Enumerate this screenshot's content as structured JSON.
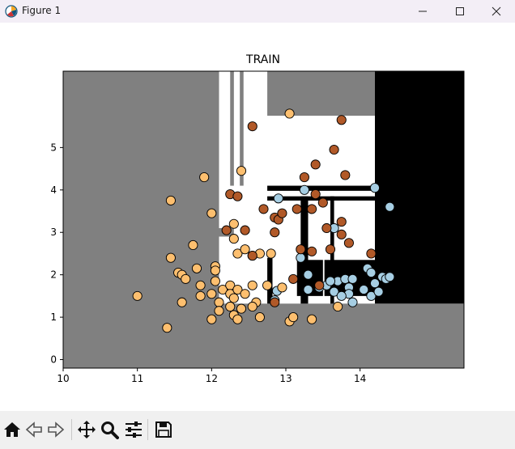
{
  "window": {
    "title": "Figure 1",
    "icons": [
      "app-icon",
      "minimize-icon",
      "maximize-icon",
      "close-icon"
    ]
  },
  "toolbar": {
    "buttons": [
      "home-icon",
      "back-icon",
      "forward-icon",
      "pan-icon",
      "zoom-icon",
      "configure-subplots-icon",
      "save-icon"
    ]
  },
  "chart_data": {
    "type": "scatter",
    "title": "TRAIN",
    "xlabel": "",
    "ylabel": "",
    "xlim": [
      10,
      15.4
    ],
    "ylim": [
      -0.2,
      6.8
    ],
    "xticks": [
      "10",
      "11",
      "12",
      "13",
      "14"
    ],
    "yticks": [
      "0",
      "1",
      "2",
      "3",
      "4",
      "5"
    ],
    "grid": false,
    "colors": {
      "light_blue": "#a6cee3",
      "orange": "#fdbf6f",
      "brown": "#b15928",
      "region_grey": "#808080",
      "region_black": "#000000",
      "region_white": "#ffffff"
    },
    "regions": [
      {
        "color": "#808080",
        "x": [
          10,
          12.1
        ],
        "y": [
          -0.2,
          6.8
        ]
      },
      {
        "color": "#808080",
        "x": [
          12.1,
          15.4
        ],
        "y": [
          -0.2,
          1.32
        ]
      },
      {
        "color": "#808080",
        "x": [
          12.1,
          12.3
        ],
        "y": [
          2.9,
          3.1
        ]
      },
      {
        "color": "#808080",
        "x": [
          12.25,
          12.3
        ],
        "y": [
          4.1,
          6.8
        ]
      },
      {
        "color": "#808080",
        "x": [
          12.38,
          12.43
        ],
        "y": [
          4.1,
          6.8
        ]
      },
      {
        "color": "#808080",
        "x": [
          12.75,
          14.2
        ],
        "y": [
          5.75,
          6.8
        ]
      },
      {
        "color": "#000000",
        "x": [
          14.2,
          15.4
        ],
        "y": [
          1.32,
          6.8
        ]
      },
      {
        "color": "#000000",
        "x": [
          12.75,
          14.2
        ],
        "y": [
          3.98,
          4.1
        ]
      },
      {
        "color": "#000000",
        "x": [
          12.75,
          14.2
        ],
        "y": [
          3.75,
          3.85
        ]
      },
      {
        "color": "#000000",
        "x": [
          13.2,
          13.3
        ],
        "y": [
          1.32,
          3.85
        ]
      },
      {
        "color": "#000000",
        "x": [
          13.6,
          13.65
        ],
        "y": [
          1.32,
          3.85
        ]
      },
      {
        "color": "#000000",
        "x": [
          12.75,
          12.82
        ],
        "y": [
          1.32,
          2.4
        ]
      },
      {
        "color": "#000000",
        "x": [
          13.15,
          13.5
        ],
        "y": [
          1.5,
          2.35
        ]
      },
      {
        "color": "#000000",
        "x": [
          13.52,
          14.2
        ],
        "y": [
          1.5,
          2.35
        ]
      }
    ],
    "series": [
      {
        "color": "#a6cee3",
        "points": [
          [
            12.9,
            3.8
          ],
          [
            13.25,
            4.0
          ],
          [
            14.2,
            4.05
          ],
          [
            14.4,
            3.6
          ],
          [
            13.65,
            3.1
          ],
          [
            13.2,
            2.4
          ],
          [
            13.3,
            2.0
          ],
          [
            13.3,
            1.65
          ],
          [
            13.45,
            1.7
          ],
          [
            13.55,
            1.75
          ],
          [
            13.65,
            1.6
          ],
          [
            13.7,
            1.85
          ],
          [
            13.8,
            1.9
          ],
          [
            13.85,
            1.7
          ],
          [
            13.85,
            1.55
          ],
          [
            13.9,
            1.9
          ],
          [
            13.75,
            1.5
          ],
          [
            13.9,
            1.35
          ],
          [
            14.05,
            1.65
          ],
          [
            14.1,
            2.15
          ],
          [
            14.15,
            2.05
          ],
          [
            14.2,
            1.8
          ],
          [
            14.15,
            1.5
          ],
          [
            14.25,
            1.6
          ],
          [
            14.3,
            1.95
          ],
          [
            14.35,
            1.9
          ],
          [
            14.4,
            1.95
          ],
          [
            12.88,
            1.62
          ],
          [
            12.85,
            1.4
          ],
          [
            13.6,
            1.85
          ]
        ]
      },
      {
        "color": "#fdbf6f",
        "points": [
          [
            11.0,
            1.5
          ],
          [
            11.4,
            0.75
          ],
          [
            11.45,
            3.75
          ],
          [
            11.45,
            2.4
          ],
          [
            11.55,
            2.05
          ],
          [
            11.6,
            2.0
          ],
          [
            11.65,
            1.9
          ],
          [
            11.6,
            1.35
          ],
          [
            11.75,
            2.7
          ],
          [
            11.8,
            2.15
          ],
          [
            11.85,
            1.75
          ],
          [
            11.85,
            1.5
          ],
          [
            11.9,
            4.3
          ],
          [
            12.0,
            3.45
          ],
          [
            12.0,
            1.55
          ],
          [
            12.0,
            0.95
          ],
          [
            12.05,
            2.2
          ],
          [
            12.05,
            2.1
          ],
          [
            12.05,
            1.85
          ],
          [
            12.1,
            1.35
          ],
          [
            12.1,
            1.15
          ],
          [
            12.15,
            1.65
          ],
          [
            12.25,
            1.75
          ],
          [
            12.25,
            1.55
          ],
          [
            12.25,
            1.25
          ],
          [
            12.3,
            3.2
          ],
          [
            12.3,
            2.85
          ],
          [
            12.3,
            1.45
          ],
          [
            12.3,
            1.05
          ],
          [
            12.35,
            2.5
          ],
          [
            12.35,
            1.65
          ],
          [
            12.35,
            0.95
          ],
          [
            12.4,
            4.45
          ],
          [
            12.4,
            1.2
          ],
          [
            12.45,
            2.6
          ],
          [
            12.45,
            1.55
          ],
          [
            12.55,
            1.75
          ],
          [
            12.55,
            2.45
          ],
          [
            12.6,
            1.35
          ],
          [
            12.65,
            2.5
          ],
          [
            12.65,
            1.0
          ],
          [
            12.75,
            1.75
          ],
          [
            12.8,
            2.5
          ],
          [
            12.95,
            1.7
          ],
          [
            13.05,
            5.8
          ],
          [
            13.05,
            0.9
          ],
          [
            13.1,
            1.0
          ],
          [
            13.35,
            0.95
          ],
          [
            13.7,
            1.25
          ],
          [
            12.55,
            1.25
          ]
        ]
      },
      {
        "color": "#b15928",
        "points": [
          [
            12.2,
            3.05
          ],
          [
            12.25,
            3.9
          ],
          [
            12.35,
            3.85
          ],
          [
            12.45,
            3.05
          ],
          [
            12.55,
            5.5
          ],
          [
            12.55,
            2.45
          ],
          [
            12.7,
            3.55
          ],
          [
            12.85,
            3.35
          ],
          [
            12.85,
            3.0
          ],
          [
            12.9,
            3.3
          ],
          [
            12.95,
            3.45
          ],
          [
            13.1,
            1.9
          ],
          [
            13.15,
            3.55
          ],
          [
            13.2,
            2.6
          ],
          [
            13.25,
            4.3
          ],
          [
            13.35,
            3.55
          ],
          [
            13.35,
            2.55
          ],
          [
            13.4,
            4.6
          ],
          [
            13.4,
            3.9
          ],
          [
            13.5,
            3.7
          ],
          [
            13.55,
            3.1
          ],
          [
            13.6,
            2.6
          ],
          [
            13.65,
            4.95
          ],
          [
            13.75,
            5.65
          ],
          [
            13.75,
            3.25
          ],
          [
            13.75,
            2.95
          ],
          [
            13.8,
            4.35
          ],
          [
            13.85,
            2.75
          ],
          [
            14.15,
            2.5
          ],
          [
            13.45,
            1.75
          ],
          [
            12.85,
            1.35
          ]
        ]
      }
    ]
  }
}
